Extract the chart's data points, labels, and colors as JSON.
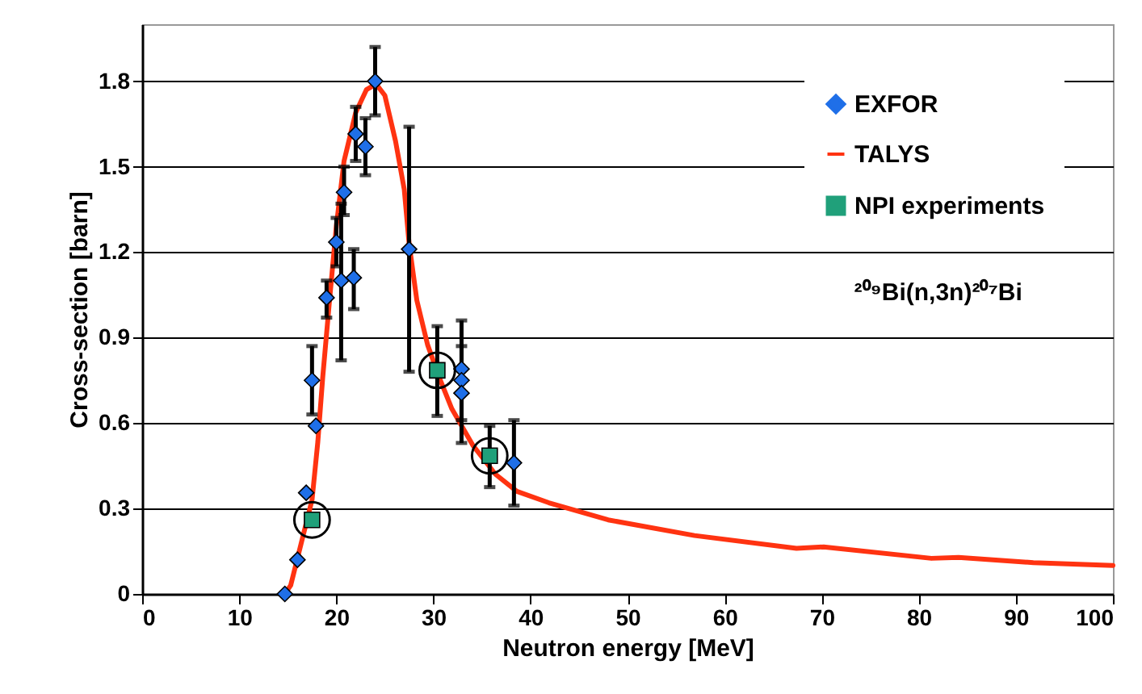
{
  "chart_data": {
    "type": "scatter",
    "xlabel": "Neutron energy [MeV]",
    "ylabel": "Cross-section [barn]",
    "xlim": [
      0,
      100
    ],
    "xticks": [
      0,
      10,
      20,
      30,
      40,
      50,
      60,
      70,
      80,
      90,
      100
    ],
    "ylim": [
      0,
      2.0
    ],
    "yticks": [
      0,
      0.3,
      0.6,
      0.9,
      1.2,
      1.5,
      1.8
    ],
    "grid": "y",
    "legend": "top right",
    "annotations": [
      "²⁰⁹Bi(n,3n)²⁰⁷Bi"
    ],
    "series": [
      {
        "name": "EXFOR",
        "marker": "diamond",
        "color": "#1f6fe8",
        "x": [
          14.7,
          16.0,
          16.9,
          17.5,
          17.9,
          19.0,
          20.0,
          20.5,
          20.8,
          21.8,
          22.0,
          23.0,
          24.0,
          27.5,
          32.9,
          32.9,
          32.9,
          38.3
        ],
        "values": [
          0.0,
          0.12,
          0.355,
          0.75,
          0.59,
          1.04,
          1.235,
          1.1,
          1.41,
          1.11,
          1.615,
          1.57,
          1.8,
          1.21,
          0.79,
          0.75,
          0.705,
          0.46
        ],
        "errors": [
          null,
          null,
          null,
          [
            0.63,
            0.87
          ],
          null,
          [
            0.97,
            1.1
          ],
          [
            1.15,
            1.32
          ],
          [
            0.82,
            1.37
          ],
          [
            1.33,
            1.5
          ],
          [
            1.0,
            1.21
          ],
          [
            1.52,
            1.71
          ],
          [
            1.47,
            1.67
          ],
          [
            1.68,
            1.92
          ],
          [
            0.78,
            1.64
          ],
          [
            0.61,
            0.96
          ],
          [
            0.53,
            0.87
          ],
          null,
          [
            0.31,
            0.61
          ]
        ]
      },
      {
        "name": "TALYS",
        "type": "line",
        "color": "#ff3311",
        "x": [
          14.7,
          15.3,
          16.4,
          17.5,
          18.1,
          18.6,
          19.3,
          20.0,
          20.8,
          22.0,
          23.1,
          24.1,
          25.0,
          26.1,
          27.0,
          27.5,
          28.3,
          29.4,
          30.6,
          31.9,
          34.1,
          36.4,
          38.6,
          41.9,
          48.0,
          56.9,
          67.4,
          70.2,
          81.3,
          84.1,
          91.8,
          100
        ],
        "values": [
          0.0,
          0.03,
          0.18,
          0.33,
          0.535,
          0.76,
          1.03,
          1.29,
          1.52,
          1.69,
          1.77,
          1.79,
          1.75,
          1.59,
          1.42,
          1.23,
          1.03,
          0.875,
          0.76,
          0.65,
          0.52,
          0.42,
          0.36,
          0.32,
          0.26,
          0.205,
          0.16,
          0.165,
          0.125,
          0.128,
          0.11,
          0.1
        ]
      },
      {
        "name": "NPI experiments",
        "marker": "square",
        "color": "#20a07a",
        "x": [
          17.5,
          30.4,
          35.8
        ],
        "values": [
          0.26,
          0.785,
          0.485
        ],
        "errors": [
          null,
          [
            0.625,
            0.94
          ],
          [
            0.375,
            0.59
          ]
        ]
      },
      {
        "marker": "circle",
        "color": "#000000",
        "x": [
          17.5,
          30.4,
          35.8
        ],
        "values": [
          0.26,
          0.785,
          0.485
        ]
      }
    ]
  }
}
